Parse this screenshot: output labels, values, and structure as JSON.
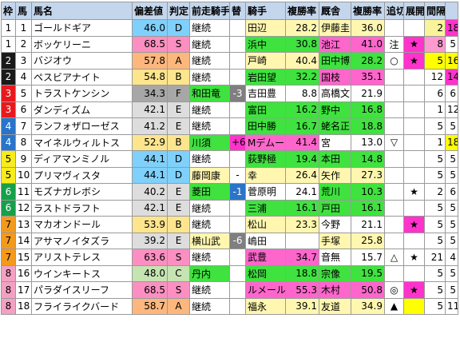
{
  "header": [
    "枠",
    "馬",
    "馬名",
    "偏差値",
    "判定",
    "前走騎手",
    "替",
    "騎手",
    "複勝率",
    "厩舎",
    "複勝率",
    "追切",
    "展開",
    "間隔",
    ""
  ],
  "frame_colors": {
    "1": "#ffffff",
    "2": "#1a1a1a",
    "3": "#e8191d",
    "4": "#2a74c9",
    "5": "#f7ec1c",
    "6": "#16a04a",
    "7": "#f39a1c",
    "8": "#f4a0c3"
  },
  "hensa_colors": {
    "S": "#fc8fc1",
    "A": "#fdb77d",
    "B": "#fde58e",
    "C": "#c6e3b2",
    "D": "#7fd0fb",
    "E": "#dddddd",
    "F": "#a7a7a7"
  },
  "rows": [
    {
      "frame": "1",
      "num": "1",
      "name": "ゴールドギア",
      "hv": "46.0",
      "hj": "D",
      "prev": "継続",
      "prevbg": "#ffffff",
      "chg": "",
      "chgbg": "#ffffff",
      "jockey": "田辺",
      "jbg": "#fff7b0",
      "jrate": "28.2",
      "stable": "伊藤圭",
      "sbg": "#fff7b0",
      "srate": "36.0",
      "oikiri": "",
      "tenkai": "",
      "tenbg": "#ffffff",
      "kankaku": "2",
      "kbg": "#f9f39a",
      "last": "18",
      "lbg": "#ff33cc"
    },
    {
      "frame": "1",
      "num": "2",
      "name": "ボッケリーニ",
      "hv": "68.5",
      "hj": "S",
      "prev": "継続",
      "prevbg": "#ffffff",
      "chg": "",
      "chgbg": "#ffffff",
      "jockey": "浜中",
      "jbg": "#3fe23f",
      "jrate": "30.8",
      "stable": "池江",
      "sbg": "#ff66cc",
      "srate": "41.0",
      "oikiri": "注",
      "tenkai": "★",
      "tenbg": "#ff33cc",
      "kankaku": "8",
      "kbg": "#ff9ad0",
      "last": "5",
      "lbg": "#ffffff"
    },
    {
      "frame": "2",
      "num": "3",
      "name": "バジオウ",
      "hv": "57.8",
      "hj": "A",
      "prev": "継続",
      "prevbg": "#ffffff",
      "chg": "",
      "chgbg": "#ffffff",
      "jockey": "戸崎",
      "jbg": "#fff7b0",
      "jrate": "40.4",
      "stable": "田中博",
      "sbg": "#3fe23f",
      "srate": "28.2",
      "oikiri": "○",
      "tenkai": "★",
      "tenbg": "#ff33cc",
      "kankaku": "5",
      "kbg": "#ffff00",
      "last": "16",
      "lbg": "#ffff00"
    },
    {
      "frame": "2",
      "num": "4",
      "name": "ペスビアナイト",
      "hv": "54.8",
      "hj": "B",
      "prev": "継続",
      "prevbg": "#ffffff",
      "chg": "",
      "chgbg": "#ffffff",
      "jockey": "岩田望",
      "jbg": "#3fe23f",
      "jrate": "32.2",
      "stable": "国枝",
      "sbg": "#ff66cc",
      "srate": "35.1",
      "oikiri": "",
      "tenkai": "",
      "tenbg": "#ffffff",
      "kankaku": "12",
      "kbg": "#ffffff",
      "last": "14",
      "lbg": "#ff33cc"
    },
    {
      "frame": "3",
      "num": "5",
      "name": "トラストケンシン",
      "hv": "34.3",
      "hj": "F",
      "prev": "和田竜",
      "prevbg": "#3fe23f",
      "chg": "-3",
      "chgbg": "#7f7f7f",
      "jockey": "吉田豊",
      "jbg": "#ffffff",
      "jrate": "8.8",
      "stable": "高橋文",
      "sbg": "#ffffff",
      "srate": "21.9",
      "oikiri": "",
      "tenkai": "",
      "tenbg": "#ffffff",
      "kankaku": "6",
      "kbg": "#ffffff",
      "last": "6",
      "lbg": "#ffffff"
    },
    {
      "frame": "3",
      "num": "6",
      "name": "ダンディズム",
      "hv": "42.1",
      "hj": "E",
      "prev": "継続",
      "prevbg": "#ffffff",
      "chg": "",
      "chgbg": "#ffffff",
      "jockey": "富田",
      "jbg": "#3fe23f",
      "jrate": "16.2",
      "stable": "野中",
      "sbg": "#3fe23f",
      "srate": "16.8",
      "oikiri": "",
      "tenkai": "",
      "tenbg": "#ffffff",
      "kankaku": "1",
      "kbg": "#ffffff",
      "last": "12",
      "lbg": "#ffffff"
    },
    {
      "frame": "4",
      "num": "7",
      "name": "ランフォザローゼス",
      "hv": "41.2",
      "hj": "E",
      "prev": "継続",
      "prevbg": "#ffffff",
      "chg": "",
      "chgbg": "#ffffff",
      "jockey": "田中勝",
      "jbg": "#3fe23f",
      "jrate": "16.7",
      "stable": "蛯名正",
      "sbg": "#3fe23f",
      "srate": "18.8",
      "oikiri": "",
      "tenkai": "",
      "tenbg": "#ffffff",
      "kankaku": "5",
      "kbg": "#ffffff",
      "last": "5",
      "lbg": "#ffffff"
    },
    {
      "frame": "4",
      "num": "8",
      "name": "マイネルウィルトス",
      "hv": "52.9",
      "hj": "B",
      "prev": "川須",
      "prevbg": "#3fe23f",
      "chg": "+6",
      "chgbg": "#ff33cc",
      "jockey": "Mデムーロ",
      "jbg": "#ff66cc",
      "jrate": "41.4",
      "stable": "宮",
      "sbg": "#ffffff",
      "srate": "13.0",
      "oikiri": "▽",
      "tenkai": "",
      "tenbg": "#ffffff",
      "kankaku": "1",
      "kbg": "#ffffff",
      "last": "18",
      "lbg": "#ffff00"
    },
    {
      "frame": "5",
      "num": "9",
      "name": "ディアマンミノル",
      "hv": "44.1",
      "hj": "D",
      "prev": "継続",
      "prevbg": "#ffffff",
      "chg": "",
      "chgbg": "#ffffff",
      "jockey": "荻野極",
      "jbg": "#3fe23f",
      "jrate": "19.4",
      "stable": "本田",
      "sbg": "#3fe23f",
      "srate": "14.8",
      "oikiri": "",
      "tenkai": "",
      "tenbg": "#ffffff",
      "kankaku": "5",
      "kbg": "#ffffff",
      "last": "5",
      "lbg": "#ffffff"
    },
    {
      "frame": "5",
      "num": "10",
      "name": "プリマヴィスタ",
      "hv": "44.1",
      "hj": "D",
      "prev": "藤岡康",
      "prevbg": "#fff7b0",
      "chg": "-",
      "chgbg": "#ffffff",
      "jockey": "幸",
      "jbg": "#fff7b0",
      "jrate": "26.4",
      "stable": "矢作",
      "sbg": "#fff7b0",
      "srate": "27.3",
      "oikiri": "",
      "tenkai": "",
      "tenbg": "#ffffff",
      "kankaku": "5",
      "kbg": "#ffffff",
      "last": "5",
      "lbg": "#ffffff"
    },
    {
      "frame": "6",
      "num": "11",
      "name": "モズナガレボシ",
      "hv": "40.2",
      "hj": "E",
      "prev": "菱田",
      "prevbg": "#3fe23f",
      "chg": "-1",
      "chgbg": "#2a74c9",
      "jockey": "菅原明",
      "jbg": "#ffffff",
      "jrate": "24.1",
      "stable": "荒川",
      "sbg": "#3fe23f",
      "srate": "10.3",
      "oikiri": "",
      "tenkai": "★",
      "tenbg": "#ffffff",
      "kankaku": "2",
      "kbg": "#ffffff",
      "last": "6",
      "lbg": "#ffffff"
    },
    {
      "frame": "6",
      "num": "12",
      "name": "ラストドラフト",
      "hv": "42.1",
      "hj": "E",
      "prev": "継続",
      "prevbg": "#ffffff",
      "chg": "",
      "chgbg": "#ffffff",
      "jockey": "三浦",
      "jbg": "#3fe23f",
      "jrate": "16.1",
      "stable": "戸田",
      "sbg": "#3fe23f",
      "srate": "16.1",
      "oikiri": "",
      "tenkai": "",
      "tenbg": "#ffffff",
      "kankaku": "5",
      "kbg": "#ffffff",
      "last": "5",
      "lbg": "#ffffff"
    },
    {
      "frame": "7",
      "num": "13",
      "name": "マカオンドール",
      "hv": "53.9",
      "hj": "B",
      "prev": "継続",
      "prevbg": "#ffffff",
      "chg": "",
      "chgbg": "#ffffff",
      "jockey": "松山",
      "jbg": "#fff7b0",
      "jrate": "23.3",
      "stable": "今野",
      "sbg": "#ffffff",
      "srate": "21.1",
      "oikiri": "",
      "tenkai": "★",
      "tenbg": "#ff33cc",
      "kankaku": "5",
      "kbg": "#ffffff",
      "last": "5",
      "lbg": "#ffffff"
    },
    {
      "frame": "7",
      "num": "14",
      "name": "アサマノイタズラ",
      "hv": "39.2",
      "hj": "E",
      "prev": "横山武",
      "prevbg": "#fff7b0",
      "chg": "-6",
      "chgbg": "#7f7f7f",
      "jockey": "嶋田",
      "jbg": "#ffffff",
      "jrate": "",
      "stable": "手塚",
      "sbg": "#fff7b0",
      "srate": "25.8",
      "oikiri": "",
      "tenkai": "",
      "tenbg": "#ffffff",
      "kankaku": "5",
      "kbg": "#ffffff",
      "last": "5",
      "lbg": "#ffffff"
    },
    {
      "frame": "7",
      "num": "15",
      "name": "アリストテレス",
      "hv": "63.6",
      "hj": "S",
      "prev": "継続",
      "prevbg": "#ffffff",
      "chg": "",
      "chgbg": "#ffffff",
      "jockey": "武豊",
      "jbg": "#ff66cc",
      "jrate": "34.7",
      "stable": "音無",
      "sbg": "#ffffff",
      "srate": "15.7",
      "oikiri": "△",
      "tenkai": "★",
      "tenbg": "#ffffff",
      "kankaku": "21",
      "kbg": "#ffffff",
      "last": "4",
      "lbg": "#ffffff"
    },
    {
      "frame": "8",
      "num": "16",
      "name": "ウインキートス",
      "hv": "48.0",
      "hj": "C",
      "prev": "丹内",
      "prevbg": "#3fe23f",
      "chg": "",
      "chgbg": "#ffffff",
      "jockey": "松岡",
      "jbg": "#3fe23f",
      "jrate": "18.8",
      "stable": "宗像",
      "sbg": "#3fe23f",
      "srate": "19.5",
      "oikiri": "",
      "tenkai": "",
      "tenbg": "#ffffff",
      "kankaku": "5",
      "kbg": "#ffffff",
      "last": "5",
      "lbg": "#ffffff"
    },
    {
      "frame": "8",
      "num": "17",
      "name": "パラダイスリーフ",
      "hv": "68.5",
      "hj": "S",
      "prev": "継続",
      "prevbg": "#ffffff",
      "chg": "",
      "chgbg": "#ffffff",
      "jockey": "ルメール",
      "jbg": "#ff66cc",
      "jrate": "55.3",
      "stable": "木村",
      "sbg": "#ff66cc",
      "srate": "50.8",
      "oikiri": "◎",
      "tenkai": "★",
      "tenbg": "#ff33cc",
      "kankaku": "5",
      "kbg": "#ffffff",
      "last": "5",
      "lbg": "#ffffff"
    },
    {
      "frame": "8",
      "num": "18",
      "name": "フライライクバード",
      "hv": "58.7",
      "hj": "A",
      "prev": "継続",
      "prevbg": "#ffffff",
      "chg": "",
      "chgbg": "#ffffff",
      "jockey": "福永",
      "jbg": "#fff7b0",
      "jrate": "39.1",
      "stable": "友道",
      "sbg": "#fff7b0",
      "srate": "34.9",
      "oikiri": "▲",
      "tenkai": "",
      "tenbg": "#ffff00",
      "kankaku": "5",
      "kbg": "#ffffff",
      "last": "11",
      "lbg": "#ffffff"
    }
  ]
}
